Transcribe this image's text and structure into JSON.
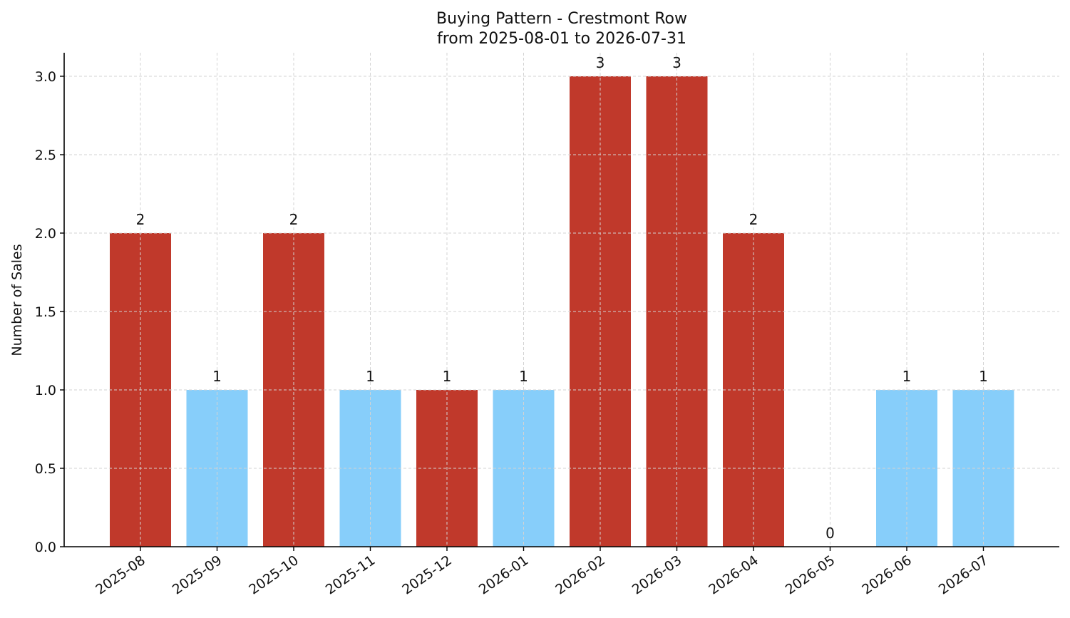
{
  "chart_data": {
    "type": "bar",
    "title": "Buying Pattern - Crestmont Row",
    "subtitle": "from 2025-08-01 to 2026-07-31",
    "xlabel": "",
    "ylabel": "Number of Sales",
    "categories": [
      "2025-08",
      "2025-09",
      "2025-10",
      "2025-11",
      "2025-12",
      "2026-01",
      "2026-02",
      "2026-03",
      "2026-04",
      "2026-05",
      "2026-06",
      "2026-07"
    ],
    "values": [
      2,
      1,
      2,
      1,
      1,
      1,
      3,
      3,
      2,
      0,
      1,
      1
    ],
    "data_labels": [
      "2",
      "1",
      "2",
      "1",
      "1",
      "1",
      "3",
      "3",
      "2",
      "0",
      "1",
      "1"
    ],
    "bar_colors": [
      "#c0392b",
      "#87cefa",
      "#c0392b",
      "#87cefa",
      "#c0392b",
      "#87cefa",
      "#c0392b",
      "#c0392b",
      "#c0392b",
      "#87cefa",
      "#87cefa",
      "#87cefa"
    ],
    "ylim": [
      0,
      3.15
    ],
    "yticks": [
      0.0,
      0.5,
      1.0,
      1.5,
      2.0,
      2.5,
      3.0
    ],
    "ytick_labels": [
      "0.0",
      "0.5",
      "1.0",
      "1.5",
      "2.0",
      "2.5",
      "3.0"
    ],
    "grid": true,
    "legend": false
  }
}
